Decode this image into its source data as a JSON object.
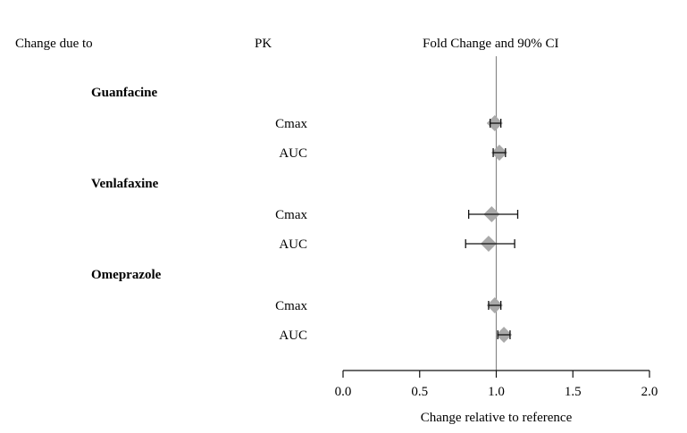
{
  "headers": {
    "col1": "Change due to",
    "col2": "PK",
    "col3": "Fold Change and 90% CI"
  },
  "chart_data": {
    "type": "forest",
    "xlabel": "Change relative to reference",
    "xlim": [
      0.0,
      2.0
    ],
    "xticks": [
      "0.0",
      "0.5",
      "1.0",
      "1.5",
      "2.0"
    ],
    "reference_line": 1.0,
    "groups": [
      {
        "name": "Guanfacine",
        "rows": [
          {
            "label": "Cmax",
            "estimate": 0.99,
            "ci_low": 0.96,
            "ci_high": 1.03
          },
          {
            "label": "AUC",
            "estimate": 1.02,
            "ci_low": 0.98,
            "ci_high": 1.06
          }
        ]
      },
      {
        "name": "Venlafaxine",
        "rows": [
          {
            "label": "Cmax",
            "estimate": 0.97,
            "ci_low": 0.82,
            "ci_high": 1.14
          },
          {
            "label": "AUC",
            "estimate": 0.95,
            "ci_low": 0.8,
            "ci_high": 1.12
          }
        ]
      },
      {
        "name": "Omeprazole",
        "rows": [
          {
            "label": "Cmax",
            "estimate": 0.99,
            "ci_low": 0.95,
            "ci_high": 1.03
          },
          {
            "label": "AUC",
            "estimate": 1.05,
            "ci_low": 1.01,
            "ci_high": 1.09
          }
        ]
      }
    ],
    "marker_color": "#a9a9a9",
    "line_color": "#888888"
  }
}
